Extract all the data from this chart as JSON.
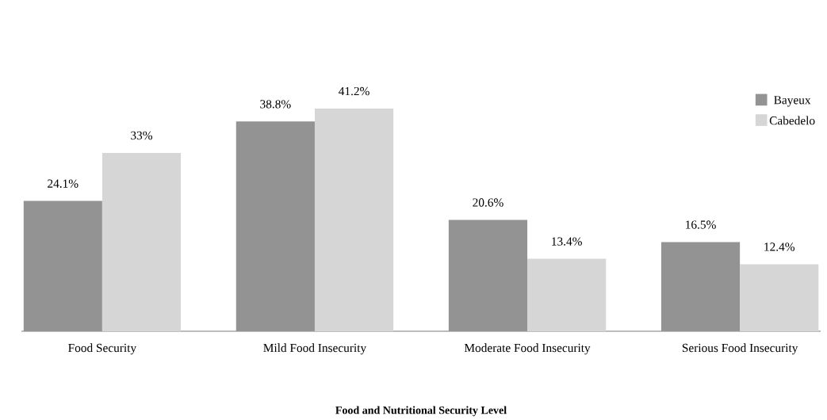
{
  "chart_data": {
    "type": "bar",
    "xlabel": "Food and Nutritional Security Level",
    "categories": [
      "Food Security",
      "Mild Food Insecurity",
      "Moderate Food Insecurity",
      "Serious Food Insecurity"
    ],
    "series": [
      {
        "name": "Bayeux",
        "color": "#939393",
        "values": [
          24.1,
          38.8,
          20.6,
          16.5
        ],
        "value_labels": [
          "24.1%",
          "38.8%",
          "20.6%",
          "16.5%"
        ]
      },
      {
        "name": "Cabedelo",
        "color": "#d6d6d6",
        "values": [
          33,
          41.2,
          13.4,
          12.4
        ],
        "value_labels": [
          "33%",
          "41.2%",
          "13.4%",
          "12.4%"
        ]
      }
    ],
    "legend": "top right"
  }
}
